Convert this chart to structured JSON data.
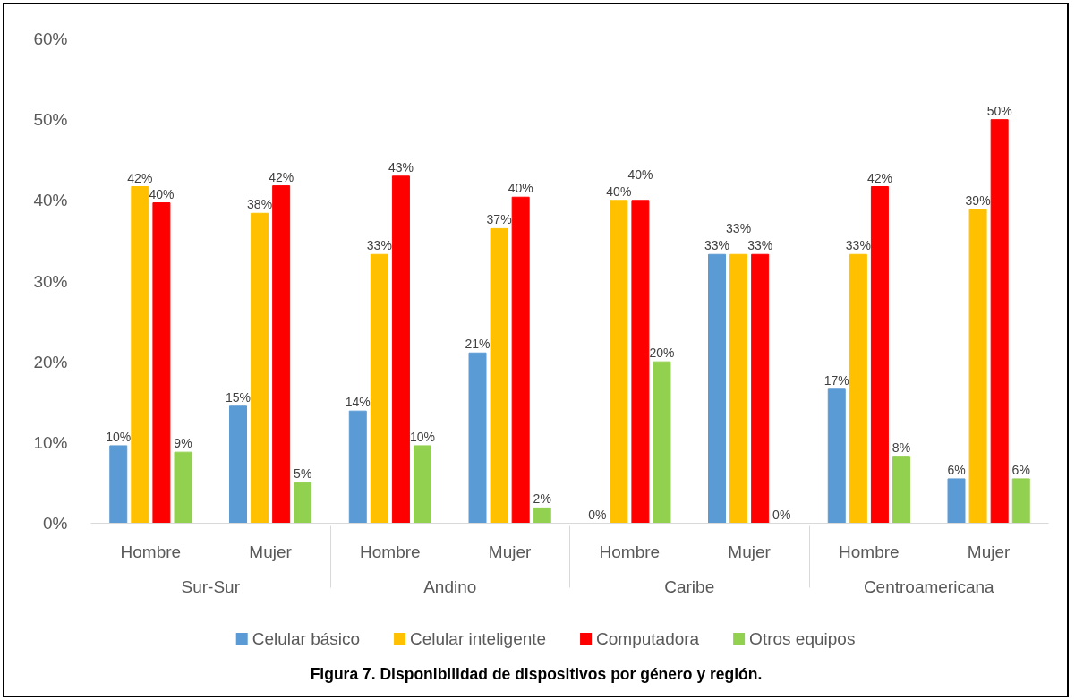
{
  "chart_data": {
    "type": "bar",
    "title": "Figura 7. Disponibilidad de dispositivos por género y región.",
    "categories": [
      [
        "Sur-Sur",
        "Hombre"
      ],
      [
        null,
        "Mujer"
      ],
      [
        "Andino",
        "Hombre"
      ],
      [
        null,
        "Mujer"
      ],
      [
        "Caribe",
        "Hombre"
      ],
      [
        null,
        "Mujer"
      ],
      [
        "Centroamericana",
        "Hombre"
      ],
      [
        null,
        "Mujer"
      ]
    ],
    "series": [
      {
        "name": "Celular básico",
        "color": "#5b9bd5",
        "values": [
          9.6,
          14.5,
          13.9,
          21.1,
          0,
          33.3,
          16.6,
          5.5
        ],
        "value_labels": [
          "10%",
          "15%",
          "14%",
          "21%",
          "0%",
          "33%",
          "17%",
          "6%"
        ]
      },
      {
        "name": "Celular inteligente",
        "color": "#ffc000",
        "values": [
          41.7,
          38.4,
          33.3,
          36.5,
          40.0,
          33.3,
          33.3,
          38.9
        ],
        "value_labels": [
          "42%",
          "38%",
          "33%",
          "37%",
          "40%",
          "33%",
          "33%",
          "39%"
        ]
      },
      {
        "name": "Computadora",
        "color": "#ff0000",
        "values": [
          39.7,
          41.8,
          43.0,
          40.4,
          40.0,
          33.3,
          41.7,
          50.0
        ],
        "value_labels": [
          "40%",
          "42%",
          "43%",
          "40%",
          "40%",
          "33%",
          "42%",
          "50%"
        ]
      },
      {
        "name": "Otros equipos",
        "color": "#92d050",
        "values": [
          8.8,
          5.0,
          9.6,
          1.9,
          20.0,
          0,
          8.3,
          5.5
        ],
        "value_labels": [
          "9%",
          "5%",
          "10%",
          "2%",
          "20%",
          "0%",
          "8%",
          "6%"
        ]
      }
    ],
    "ylim": [
      0,
      60
    ],
    "yticks": [
      {
        "value": 0,
        "label": "0%"
      },
      {
        "value": 10,
        "label": "10%"
      },
      {
        "value": 20,
        "label": "20%"
      },
      {
        "value": 30,
        "label": "30%"
      },
      {
        "value": 40,
        "label": "40%"
      },
      {
        "value": 50,
        "label": "50%"
      },
      {
        "value": 60,
        "label": "60%"
      }
    ],
    "legend": "bottom"
  }
}
